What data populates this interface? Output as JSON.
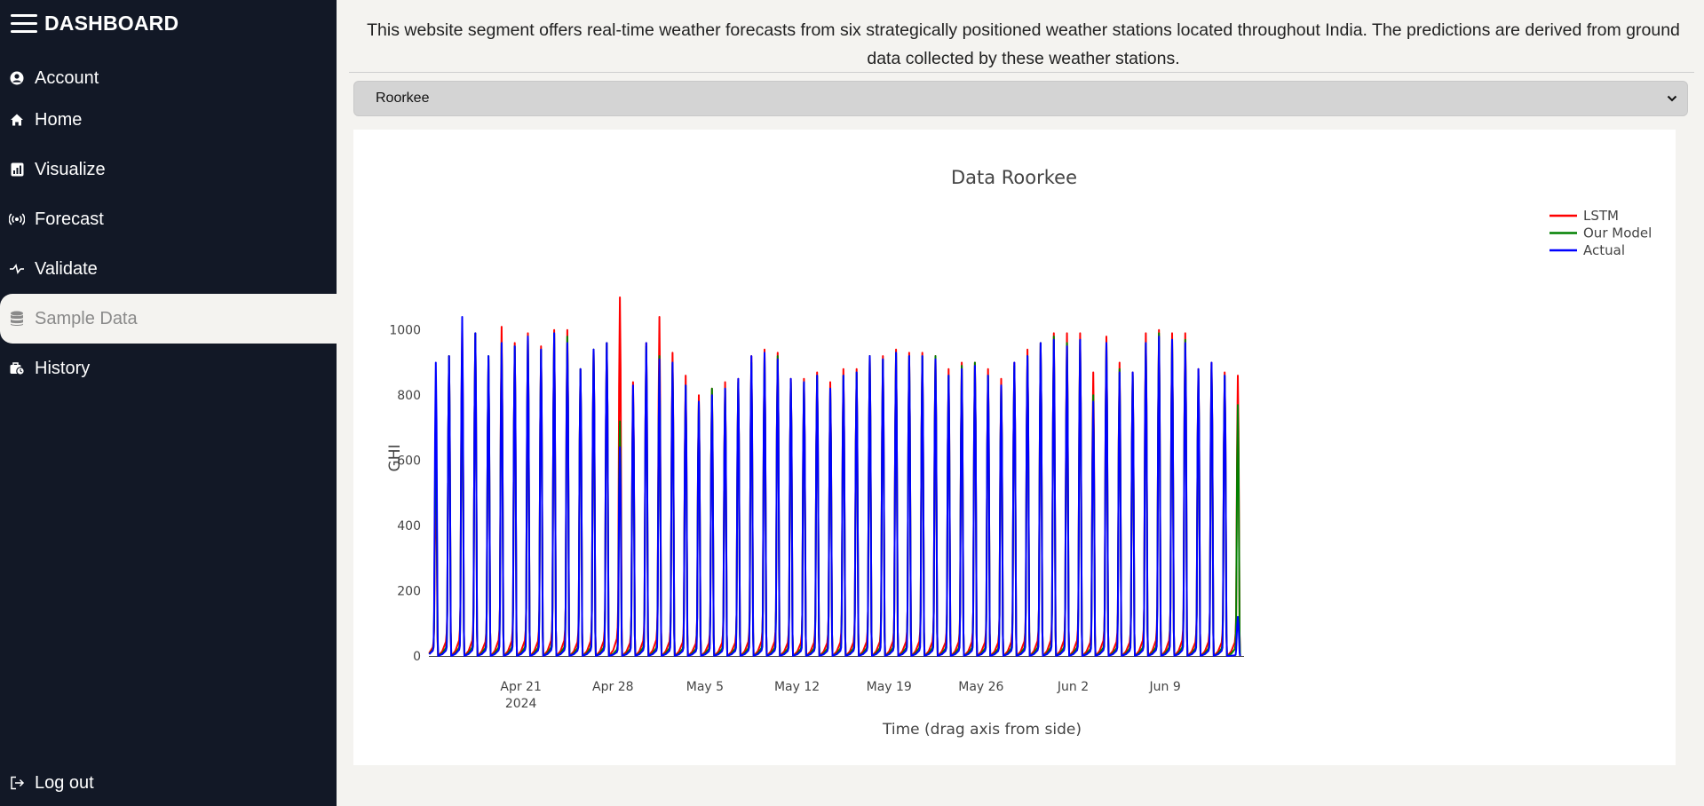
{
  "sidebar": {
    "brand": "DASHBOARD",
    "items": [
      {
        "label": "Account",
        "icon": "account-icon"
      },
      {
        "label": "Home",
        "icon": "home-icon"
      },
      {
        "label": "Visualize",
        "icon": "chart-icon"
      },
      {
        "label": "Forecast",
        "icon": "broadcast-icon"
      },
      {
        "label": "Validate",
        "icon": "validate-icon"
      },
      {
        "label": "Sample Data",
        "icon": "database-icon",
        "active": true
      },
      {
        "label": "History",
        "icon": "history-icon"
      }
    ],
    "logout": "Log out"
  },
  "main": {
    "intro": "This website segment offers real-time weather forecasts from six strategically positioned weather stations located throughout India. The predictions are derived from ground data collected by these weather stations.",
    "station_select": {
      "value": "Roorkee"
    }
  },
  "colors": {
    "sidebar_bg": "#121826",
    "page_bg": "#f4f3f0",
    "lstm": "#ff0000",
    "our_model": "#008000",
    "actual": "#0000ff"
  },
  "chart_data": {
    "type": "line",
    "title": "Data Roorkee",
    "xlabel": "Time (drag axis from side)",
    "ylabel": "GHI",
    "x_range": [
      "2024-04-14",
      "2024-06-15"
    ],
    "x_ticks": [
      {
        "date": "2024-04-21",
        "label": "Apr 21",
        "sublabel": "2024"
      },
      {
        "date": "2024-04-28",
        "label": "Apr 28"
      },
      {
        "date": "2024-05-05",
        "label": "May 5"
      },
      {
        "date": "2024-05-12",
        "label": "May 12"
      },
      {
        "date": "2024-05-19",
        "label": "May 19"
      },
      {
        "date": "2024-05-26",
        "label": "May 26"
      },
      {
        "date": "2024-06-02",
        "label": "Jun 2"
      },
      {
        "date": "2024-06-09",
        "label": "Jun 9"
      }
    ],
    "y_ticks": [
      0,
      200,
      400,
      600,
      800,
      1000
    ],
    "ylim": [
      0,
      1100
    ],
    "grid": false,
    "legend_position": "top-right",
    "series": [
      {
        "name": "LSTM",
        "color": "#ff0000"
      },
      {
        "name": "Our Model",
        "color": "#008000"
      },
      {
        "name": "Actual",
        "color": "#0000ff"
      }
    ],
    "daily_peaks": {
      "dates": [
        "2024-04-14",
        "2024-04-15",
        "2024-04-16",
        "2024-04-17",
        "2024-04-18",
        "2024-04-19",
        "2024-04-20",
        "2024-04-21",
        "2024-04-22",
        "2024-04-23",
        "2024-04-24",
        "2024-04-25",
        "2024-04-26",
        "2024-04-27",
        "2024-04-28",
        "2024-04-29",
        "2024-04-30",
        "2024-05-01",
        "2024-05-02",
        "2024-05-03",
        "2024-05-04",
        "2024-05-05",
        "2024-05-06",
        "2024-05-07",
        "2024-05-08",
        "2024-05-09",
        "2024-05-10",
        "2024-05-11",
        "2024-05-12",
        "2024-05-13",
        "2024-05-14",
        "2024-05-15",
        "2024-05-16",
        "2024-05-17",
        "2024-05-18",
        "2024-05-19",
        "2024-05-20",
        "2024-05-21",
        "2024-05-22",
        "2024-05-23",
        "2024-05-24",
        "2024-05-25",
        "2024-05-26",
        "2024-05-27",
        "2024-05-28",
        "2024-05-29",
        "2024-05-30",
        "2024-05-31",
        "2024-06-01",
        "2024-06-02",
        "2024-06-03",
        "2024-06-04",
        "2024-06-05",
        "2024-06-06",
        "2024-06-07",
        "2024-06-08",
        "2024-06-09",
        "2024-06-10",
        "2024-06-11",
        "2024-06-12",
        "2024-06-13",
        "2024-06-14"
      ],
      "LSTM": [
        550,
        920,
        1000,
        990,
        910,
        1010,
        960,
        990,
        950,
        1000,
        1000,
        880,
        940,
        960,
        1100,
        840,
        960,
        1040,
        930,
        860,
        800,
        820,
        840,
        850,
        920,
        940,
        930,
        850,
        850,
        870,
        840,
        880,
        880,
        920,
        920,
        940,
        930,
        930,
        920,
        880,
        900,
        900,
        880,
        850,
        900,
        940,
        960,
        990,
        990,
        990,
        870,
        980,
        900,
        870,
        990,
        1000,
        990,
        990,
        880,
        900,
        870,
        860
      ],
      "Our Model": [
        700,
        920,
        950,
        990,
        920,
        960,
        950,
        980,
        940,
        990,
        980,
        880,
        940,
        960,
        720,
        800,
        950,
        920,
        900,
        830,
        780,
        820,
        820,
        840,
        900,
        920,
        920,
        840,
        840,
        860,
        820,
        860,
        870,
        920,
        910,
        930,
        920,
        920,
        920,
        860,
        890,
        900,
        860,
        830,
        890,
        920,
        960,
        980,
        960,
        970,
        800,
        960,
        880,
        860,
        960,
        990,
        970,
        970,
        860,
        880,
        860,
        770
      ],
      "Actual": [
        900,
        920,
        1040,
        990,
        920,
        960,
        950,
        980,
        940,
        990,
        960,
        880,
        940,
        960,
        640,
        830,
        960,
        910,
        900,
        830,
        780,
        800,
        820,
        850,
        920,
        930,
        910,
        850,
        840,
        860,
        820,
        860,
        870,
        920,
        910,
        930,
        920,
        920,
        910,
        860,
        880,
        890,
        860,
        830,
        900,
        920,
        960,
        970,
        950,
        970,
        780,
        960,
        870,
        870,
        960,
        980,
        970,
        960,
        880,
        900,
        860,
        120
      ]
    }
  }
}
